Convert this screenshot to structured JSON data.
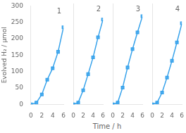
{
  "chart_data": {
    "type": "line",
    "xlabel": "Time / h",
    "ylabel": "Evolved H₂ / μmol",
    "x": [
      0,
      1,
      2,
      3,
      4,
      5,
      6
    ],
    "xlim": [
      0,
      6
    ],
    "xticks": [
      0,
      2,
      4,
      6
    ],
    "ylim": [
      0,
      300
    ],
    "yticks": [
      0,
      50,
      100,
      150,
      200,
      250,
      300
    ],
    "grid": false,
    "marker": "square",
    "series": [
      {
        "name": "1",
        "values": [
          0,
          5,
          30,
          75,
          110,
          160,
          235
        ]
      },
      {
        "name": "2",
        "values": [
          0,
          5,
          42,
          90,
          140,
          200,
          253
        ]
      },
      {
        "name": "3",
        "values": [
          0,
          5,
          50,
          110,
          165,
          215,
          263
        ]
      },
      {
        "name": "4",
        "values": [
          0,
          5,
          35,
          80,
          130,
          185,
          242
        ]
      }
    ]
  }
}
